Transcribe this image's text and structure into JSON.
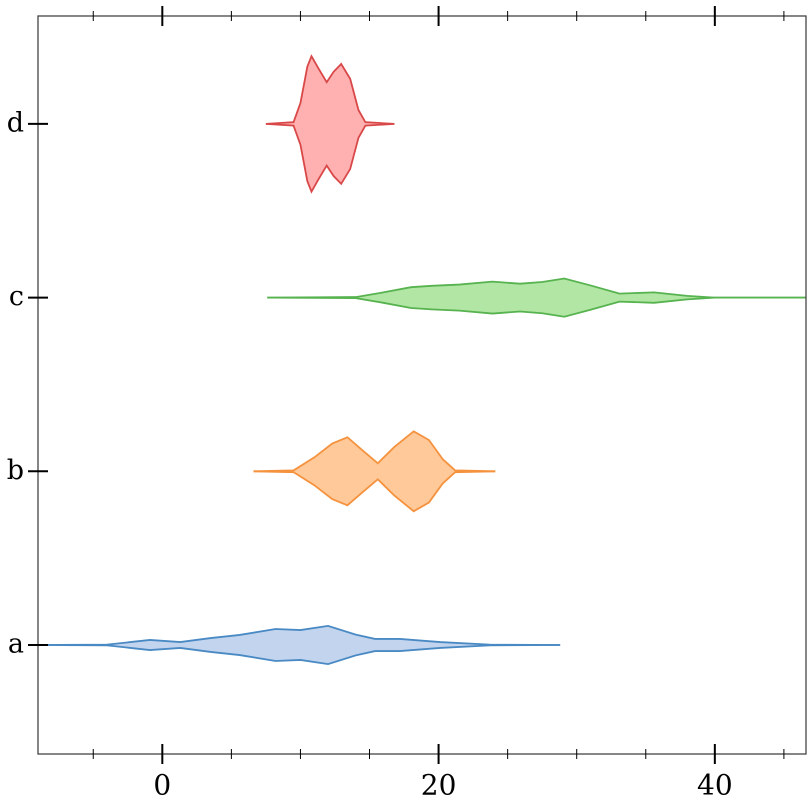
{
  "chart_data": {
    "type": "violin",
    "categories": [
      "a",
      "b",
      "c",
      "d"
    ],
    "xlim": [
      -9,
      46.6
    ],
    "xticks": [
      0,
      20,
      40
    ],
    "xminorticks": [
      -5,
      5,
      10,
      15,
      25,
      30,
      35,
      45
    ],
    "violins": [
      {
        "color": "#4a8ac4",
        "fill": "#c3d4ee",
        "x": [
          -9,
          -4,
          -0.9,
          1.3,
          3.5,
          5.6,
          8.2,
          10,
          12,
          14,
          15.4,
          17.2,
          20.1,
          23.7,
          28.8
        ],
        "density": [
          0,
          0.002,
          0.029,
          0.017,
          0.04,
          0.058,
          0.092,
          0.086,
          0.11,
          0.06,
          0.035,
          0.035,
          0.017,
          0.002,
          0
        ]
      },
      {
        "color": "#f5923e",
        "fill": "#ffc999",
        "x": [
          6.6,
          9.5,
          11,
          12.3,
          13.4,
          14.5,
          15.6,
          16.8,
          18.2,
          19.3,
          20.3,
          21.2,
          24.1
        ],
        "density": [
          0,
          0.005,
          0.08,
          0.16,
          0.196,
          0.12,
          0.046,
          0.14,
          0.23,
          0.18,
          0.07,
          0.005,
          0
        ]
      },
      {
        "color": "#57b34f",
        "fill": "#b2e6a4",
        "x": [
          7.6,
          14,
          16,
          18,
          19.5,
          21.5,
          23.9,
          25.9,
          27.5,
          29.1,
          31,
          33.1,
          35.6,
          38,
          40,
          46.6
        ],
        "density": [
          0,
          0.003,
          0.03,
          0.06,
          0.068,
          0.075,
          0.092,
          0.08,
          0.09,
          0.11,
          0.07,
          0.023,
          0.03,
          0.01,
          0,
          0
        ]
      },
      {
        "color": "#d94848",
        "fill": "#ffb0b0",
        "x": [
          7.5,
          9.5,
          10,
          10.5,
          10.8,
          11.3,
          11.9,
          12.4,
          12.95,
          13.6,
          14.2,
          14.7,
          16.8
        ],
        "density": [
          0,
          0.01,
          0.12,
          0.33,
          0.39,
          0.32,
          0.24,
          0.3,
          0.345,
          0.26,
          0.08,
          0.01,
          0
        ]
      }
    ]
  }
}
